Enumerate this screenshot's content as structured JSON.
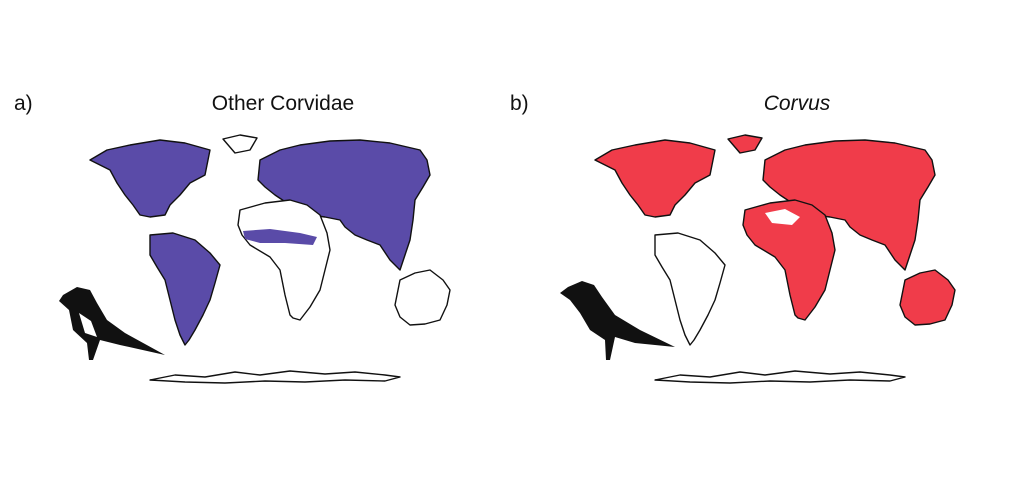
{
  "panels": [
    {
      "label": "a)",
      "title": "Other Corvidae"
    },
    {
      "label": "b)",
      "title": "Corvus"
    }
  ]
}
